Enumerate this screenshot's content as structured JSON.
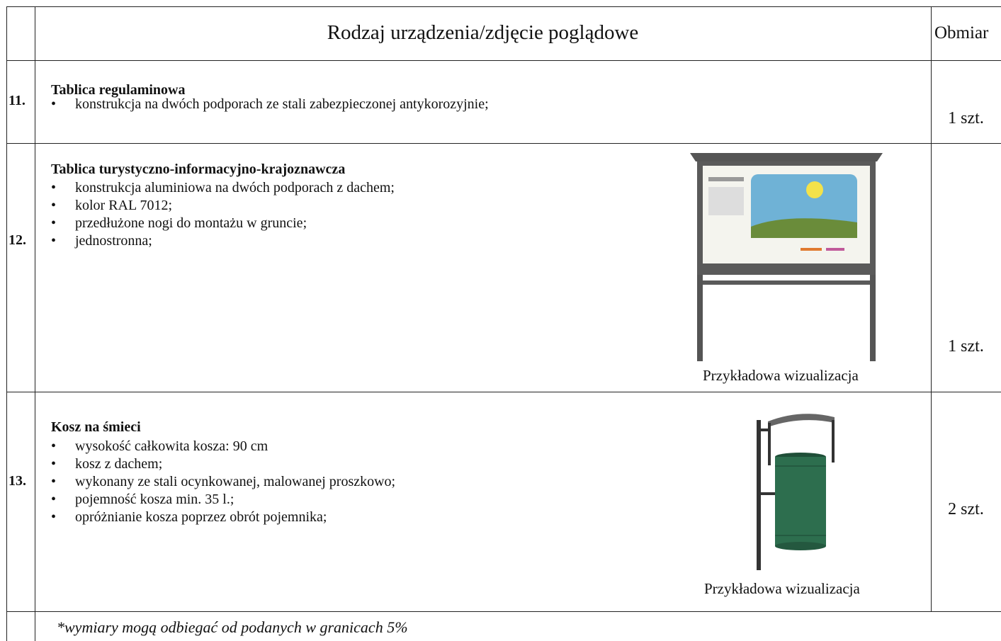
{
  "header": {
    "title": "Rodzaj urządzenia/zdjęcie poglądowe",
    "quantity": "Obmiar"
  },
  "rows": [
    {
      "number": "11.",
      "name": "Tablica regulaminowa",
      "features": [
        "konstrukcja na dwóch podporach ze stali zabezpieczonej antykorozyjnie;"
      ],
      "quantity": "1 szt."
    },
    {
      "number": "12.",
      "name": "Tablica turystyczno-informacyjno-krajoznawcza",
      "features": [
        "konstrukcja aluminiowa na dwóch podporach z dachem;",
        "kolor RAL 7012;",
        "przedłużone nogi do montażu w gruncie;",
        "jednostronna;"
      ],
      "image_caption": "Przykładowa wizualizacja",
      "quantity": "1 szt."
    },
    {
      "number": "13.",
      "name": "Kosz na śmieci",
      "features": [
        "wysokość całkowita kosza: 90 cm",
        "kosz z dachem;",
        "wykonany ze stali ocynkowanej, malowanej proszkowo;",
        "pojemność kosza min. 35 l.;",
        "opróżnianie kosza poprzez obrót pojemnika;"
      ],
      "image_caption": "Przykładowa wizualizacja",
      "quantity": "2 szt."
    }
  ],
  "footnote": "*wymiary mogą odbiegać od podanych w granicach 5%"
}
